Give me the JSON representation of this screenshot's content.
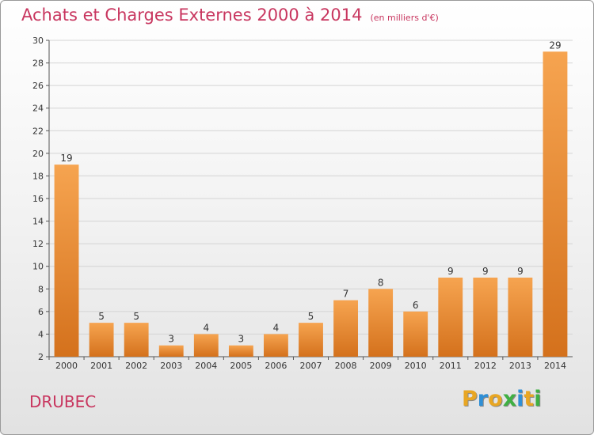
{
  "chart_data": {
    "type": "bar",
    "title": "Achats et Charges Externes 2000 à 2014",
    "subtitle": "(en milliers d'€)",
    "xlabel": "",
    "ylabel": "",
    "categories": [
      "2000",
      "2001",
      "2002",
      "2003",
      "2004",
      "2005",
      "2006",
      "2007",
      "2008",
      "2009",
      "2010",
      "2011",
      "2012",
      "2013",
      "2014"
    ],
    "values": [
      19,
      5,
      5,
      3,
      4,
      3,
      4,
      5,
      7,
      8,
      6,
      9,
      9,
      9,
      29
    ],
    "data_labels": [
      "19",
      "5",
      "5",
      "3",
      "4",
      "3",
      "4",
      "5",
      "7",
      "8",
      "6",
      "9",
      "9",
      "9",
      "29"
    ],
    "ylim": [
      2,
      30
    ],
    "yticks": [
      2,
      4,
      6,
      8,
      10,
      12,
      14,
      16,
      18,
      20,
      22,
      24,
      26,
      28,
      30
    ],
    "grid": true,
    "legend": "none",
    "bar_color_top": "#f6a450",
    "bar_color_bottom": "#d4711c"
  },
  "footer": {
    "location": "DRUBEC",
    "logo_letters": [
      "P",
      "r",
      "o",
      "x",
      "i",
      "t",
      "i"
    ],
    "logo_colors": [
      "#e8a623",
      "#2f8fd6",
      "#e8a623",
      "#3fb043",
      "#2f8fd6",
      "#e8a623",
      "#3fb043"
    ]
  }
}
